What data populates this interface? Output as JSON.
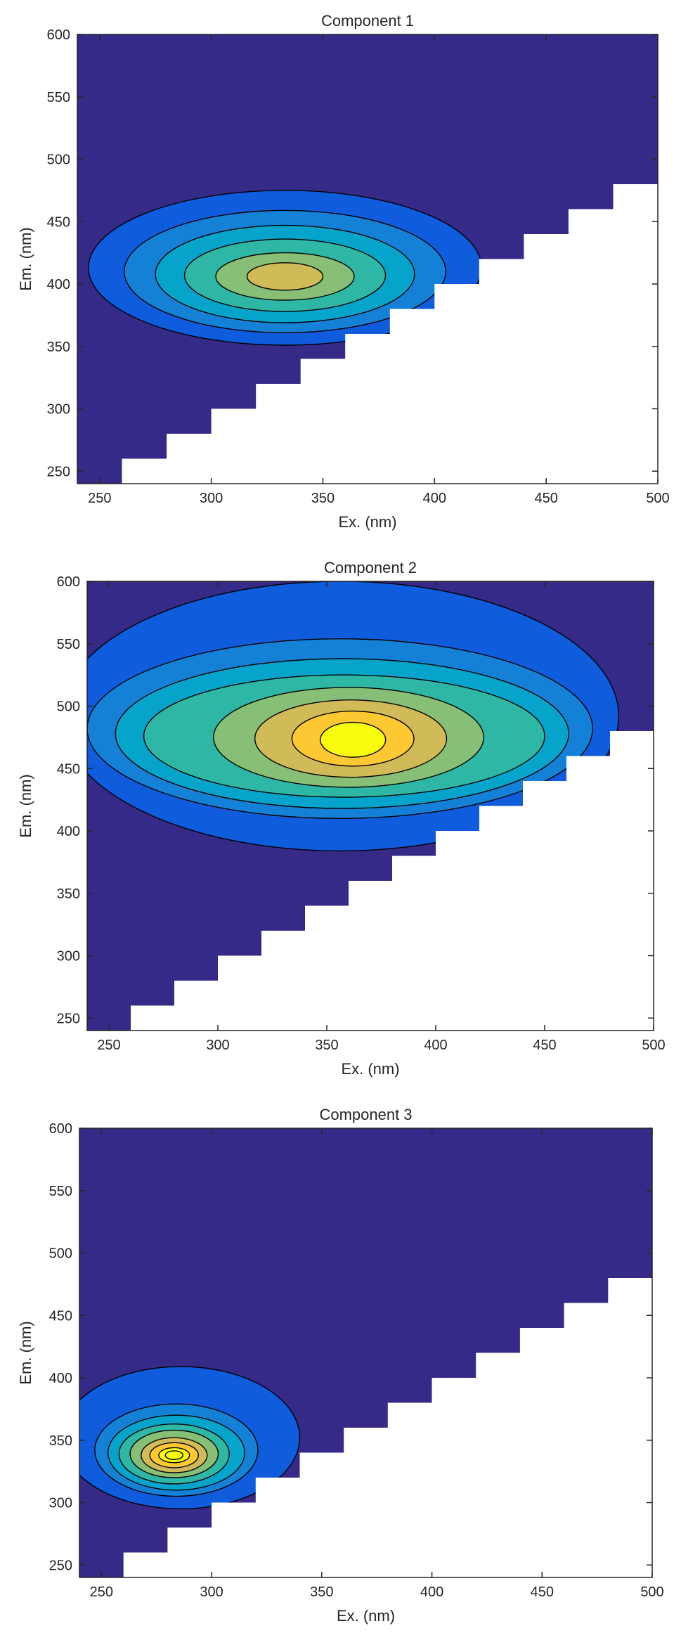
{
  "chart_data": [
    {
      "type": "contour",
      "title": "Component 1",
      "xlabel": "Ex. (nm)",
      "ylabel": "Em. (nm)",
      "xlim": [
        240,
        500
      ],
      "ylim": [
        240,
        600
      ],
      "xticks": [
        250,
        300,
        350,
        400,
        450,
        500
      ],
      "yticks": [
        250,
        300,
        350,
        400,
        450,
        500,
        550,
        600
      ],
      "masked_region": "Em < Ex",
      "peak": {
        "ex": 333,
        "em": 406
      },
      "levels": 6
    },
    {
      "type": "contour",
      "title": "Component 2",
      "xlabel": "Ex. (nm)",
      "ylabel": "Em. (nm)",
      "xlim": [
        240,
        500
      ],
      "ylim": [
        240,
        600
      ],
      "xticks": [
        250,
        300,
        350,
        400,
        450,
        500
      ],
      "yticks": [
        250,
        300,
        350,
        400,
        450,
        500,
        550,
        600
      ],
      "masked_region": "Em < Ex",
      "peak": {
        "ex": 362,
        "em": 474
      },
      "levels": 8
    },
    {
      "type": "contour",
      "title": "Component 3",
      "xlabel": "Ex. (nm)",
      "ylabel": "Em. (nm)",
      "xlim": [
        240,
        500
      ],
      "ylim": [
        240,
        600
      ],
      "xticks": [
        250,
        300,
        350,
        400,
        450,
        500
      ],
      "yticks": [
        250,
        300,
        350,
        400,
        450,
        500,
        550,
        600
      ],
      "masked_region": "Em < Ex",
      "peak": {
        "ex": 283,
        "em": 338
      },
      "levels": 9
    }
  ],
  "colors": {
    "background_level": "#352a87",
    "colormap": [
      "#352a87",
      "#0f5cdd",
      "#1481d6",
      "#06a4ca",
      "#2eb7a4",
      "#87bf77",
      "#d1bb59",
      "#fec832",
      "#f9fb0e"
    ],
    "contour_line": "#000000",
    "masked": "#ffffff"
  }
}
